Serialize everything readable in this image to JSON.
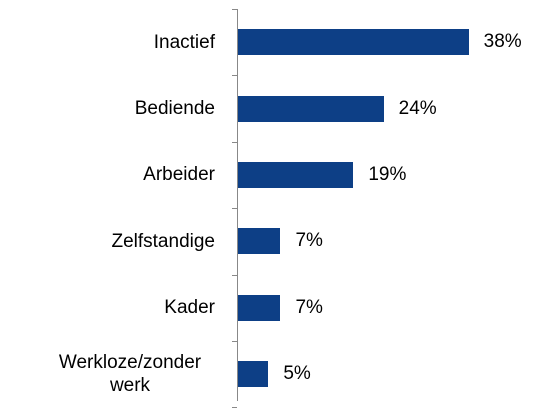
{
  "chart_data": {
    "type": "bar",
    "orientation": "horizontal",
    "categories": [
      "Inactief",
      "Bediende",
      "Arbeider",
      "Zelfstandige",
      "Kader",
      "Werkloze/zonder werk"
    ],
    "values": [
      38,
      24,
      19,
      7,
      7,
      5
    ],
    "value_labels": [
      "38%",
      "24%",
      "19%",
      "7%",
      "7%",
      "5%"
    ],
    "color": "#0d3f86"
  }
}
